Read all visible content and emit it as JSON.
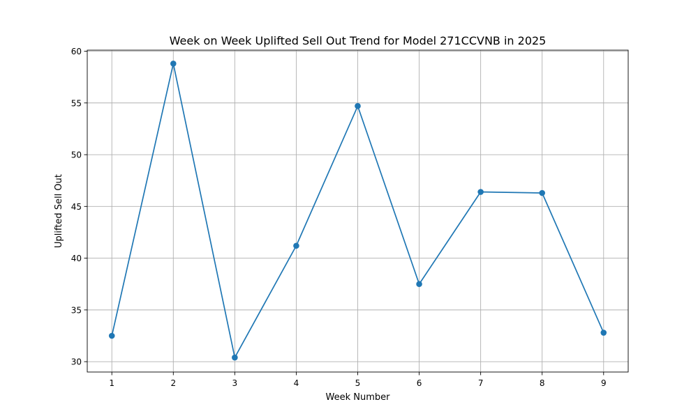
{
  "chart_data": {
    "type": "line",
    "title": "Week on Week Uplifted Sell Out Trend for Model 271CCVNB in 2025",
    "xlabel": "Week Number",
    "ylabel": "Uplifted Sell Out",
    "x": [
      1,
      2,
      3,
      4,
      5,
      6,
      7,
      8,
      9
    ],
    "series": [
      {
        "values": [
          32.5,
          58.8,
          30.4,
          41.2,
          54.7,
          37.5,
          46.4,
          46.3,
          32.8
        ],
        "color": "#1f77b4",
        "marker": "circle"
      }
    ],
    "xlim": [
      0.6,
      9.4
    ],
    "ylim": [
      29.0,
      60.1
    ],
    "xticks": [
      1,
      2,
      3,
      4,
      5,
      6,
      7,
      8,
      9
    ],
    "yticks": [
      30,
      35,
      40,
      45,
      50,
      55,
      60
    ],
    "grid": true,
    "legend": "none"
  }
}
